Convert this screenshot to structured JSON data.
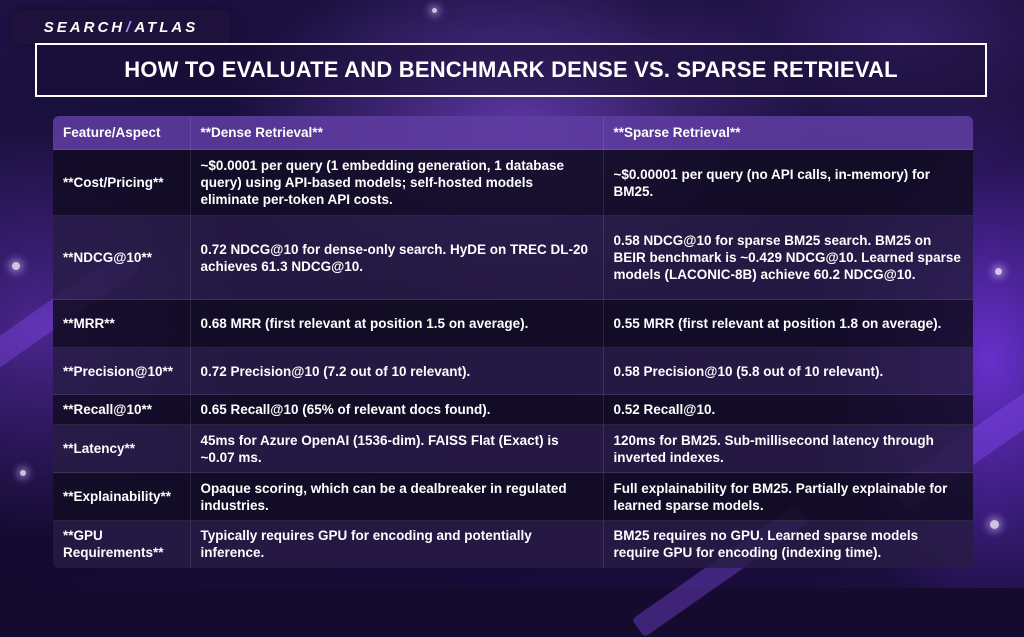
{
  "brand": {
    "logo_left": "SEARCH",
    "logo_slash": "/",
    "logo_right": "ATLAS"
  },
  "title": "HOW TO EVALUATE AND BENCHMARK DENSE VS. SPARSE RETRIEVAL",
  "table": {
    "headers": [
      "Feature/Aspect",
      "**Dense Retrieval**",
      "**Sparse Retrieval**"
    ],
    "rows": [
      [
        "**Cost/Pricing**",
        "~$0.0001 per query (1 embedding generation, 1 database query) using API-based models; self-hosted models eliminate per-token API costs.",
        "~$0.00001 per query (no API calls, in-memory) for BM25."
      ],
      [
        "**NDCG@10**",
        "0.72 NDCG@10 for dense-only search. HyDE on TREC DL-20 achieves 61.3 NDCG@10.",
        "0.58 NDCG@10 for sparse BM25 search. BM25 on BEIR benchmark is ~0.429 NDCG@10. Learned sparse models (LACONIC-8B) achieve 60.2 NDCG@10."
      ],
      [
        "**MRR**",
        "0.68 MRR (first relevant at position 1.5 on average).",
        "0.55 MRR (first relevant at position 1.8 on average)."
      ],
      [
        "**Precision@10**",
        "0.72 Precision@10 (7.2 out of 10 relevant).",
        "0.58 Precision@10 (5.8 out of 10 relevant)."
      ],
      [
        "**Recall@10**",
        "0.65 Recall@10 (65% of relevant docs found).",
        "0.52 Recall@10."
      ],
      [
        "**Latency**",
        "45ms for Azure OpenAI (1536-dim). FAISS Flat (Exact) is ~0.07 ms.",
        "120ms for BM25. Sub-millisecond latency through inverted indexes."
      ],
      [
        "**Explainability**",
        "Opaque scoring, which can be a dealbreaker in regulated industries.",
        "Full explainability for BM25. Partially explainable for learned sparse models."
      ],
      [
        "**GPU Requirements**",
        "Typically requires GPU for encoding and potentially inference.",
        "BM25 requires no GPU. Learned sparse models require GPU for encoding (indexing time)."
      ]
    ]
  }
}
